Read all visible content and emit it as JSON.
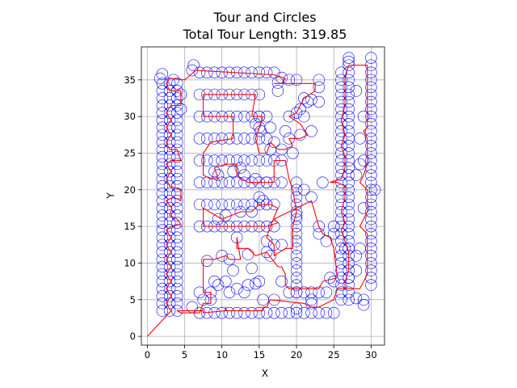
{
  "chart_data": {
    "type": "scatter",
    "title_line1": "Tour and Circles",
    "title_line2": "Total Tour Length: 319.85",
    "xlabel": "X",
    "ylabel": "Y",
    "xlim": [
      -0.8,
      31.8
    ],
    "ylim": [
      -1.2,
      39.5
    ],
    "xticks": [
      0,
      5,
      10,
      15,
      20,
      25,
      30
    ],
    "yticks": [
      0,
      5,
      10,
      15,
      20,
      25,
      30,
      35
    ],
    "grid": true,
    "colors": {
      "circles": "#0000ff",
      "tour": "#ff0000",
      "grid": "#b0b0b0"
    },
    "circle_radius": 0.75,
    "circle_groups": [
      {
        "x": 2.0,
        "y_from": 3.5,
        "y_to": 35.0,
        "step": 1.0
      },
      {
        "x": 3.0,
        "y_from": 3.5,
        "y_to": 35.0,
        "step": 1.0
      },
      {
        "x": 4.0,
        "y_from": 3.5,
        "y_to": 35.0,
        "step": 1.0
      },
      {
        "x": 26.0,
        "y_from": 5.0,
        "y_to": 36.0,
        "step": 1.0
      },
      {
        "x": 27.0,
        "y_from": 5.0,
        "y_to": 37.0,
        "step": 1.0
      },
      {
        "x": 30.0,
        "y_from": 7.0,
        "y_to": 37.0,
        "step": 1.0
      },
      {
        "y": 36.0,
        "x_from": 7.0,
        "x_to": 17.0,
        "step": 1.0
      },
      {
        "y": 33.0,
        "x_from": 7.0,
        "x_to": 15.0,
        "step": 1.0
      },
      {
        "y": 30.0,
        "x_from": 7.0,
        "x_to": 15.0,
        "step": 1.0
      },
      {
        "y": 27.0,
        "x_from": 7.0,
        "x_to": 15.0,
        "step": 1.0
      },
      {
        "y": 24.0,
        "x_from": 7.0,
        "x_to": 18.0,
        "step": 1.0
      },
      {
        "y": 21.0,
        "x_from": 7.0,
        "x_to": 18.0,
        "step": 1.0
      },
      {
        "y": 18.0,
        "x_from": 7.0,
        "x_to": 17.0,
        "step": 1.0
      },
      {
        "y": 15.0,
        "x_from": 7.0,
        "x_to": 17.0,
        "step": 1.0
      },
      {
        "y": 3.2,
        "x_from": 7.0,
        "x_to": 25.0,
        "step": 1.0
      },
      {
        "y": 6.0,
        "x_from": 19.0,
        "x_to": 24.0,
        "step": 1.0
      },
      {
        "x": 20.0,
        "y_from": 6.0,
        "y_to": 21.0,
        "step": 1.0
      }
    ],
    "circle_extra": [
      [
        1.7,
        35.2
      ],
      [
        2.0,
        35.8
      ],
      [
        3.5,
        35.0
      ],
      [
        4.5,
        33.0
      ],
      [
        4.5,
        31.0
      ],
      [
        6.2,
        37.0
      ],
      [
        6.0,
        36.3
      ],
      [
        18.0,
        35.3
      ],
      [
        19.0,
        35.0
      ],
      [
        20.0,
        35.0
      ],
      [
        23.0,
        35.0
      ],
      [
        23.0,
        34.0
      ],
      [
        17.5,
        34.6
      ],
      [
        17.5,
        33.5
      ],
      [
        21.0,
        32.5
      ],
      [
        21.5,
        32.0
      ],
      [
        22.0,
        32.3
      ],
      [
        20.5,
        31.0
      ],
      [
        20.0,
        30.5
      ],
      [
        23.0,
        32.0
      ],
      [
        19.0,
        30.0
      ],
      [
        21.0,
        30.0
      ],
      [
        15.0,
        30.0
      ],
      [
        16.0,
        30.0
      ],
      [
        14.5,
        29.0
      ],
      [
        15.0,
        28.5
      ],
      [
        15.2,
        28.0
      ],
      [
        16.5,
        28.5
      ],
      [
        18.5,
        28.0
      ],
      [
        20.5,
        27.5
      ],
      [
        22.0,
        28.0
      ],
      [
        19.0,
        27.0
      ],
      [
        17.0,
        26.5
      ],
      [
        16.5,
        25.5
      ],
      [
        18.0,
        25.5
      ],
      [
        19.5,
        25.0
      ],
      [
        16.0,
        27.0
      ],
      [
        13.0,
        22.0
      ],
      [
        11.5,
        22.5
      ],
      [
        12.5,
        23.0
      ],
      [
        14.5,
        21.5
      ],
      [
        16.0,
        21.0
      ],
      [
        9.5,
        22.0
      ],
      [
        9.0,
        22.5
      ],
      [
        21.0,
        20.0
      ],
      [
        22.0,
        19.0
      ],
      [
        23.5,
        21.0
      ],
      [
        15.0,
        19.0
      ],
      [
        15.5,
        18.5
      ],
      [
        16.0,
        18.0
      ],
      [
        9.5,
        16.0
      ],
      [
        10.5,
        16.5
      ],
      [
        12.5,
        17.0
      ],
      [
        14.0,
        17.0
      ],
      [
        12.0,
        13.5
      ],
      [
        16.0,
        13.0
      ],
      [
        16.5,
        11.0
      ],
      [
        17.0,
        12.5
      ],
      [
        18.0,
        12.5
      ],
      [
        16.0,
        11.5
      ],
      [
        20.0,
        16.5
      ],
      [
        23.0,
        15.0
      ],
      [
        23.0,
        14.0
      ],
      [
        24.0,
        13.0
      ],
      [
        25.0,
        14.0
      ],
      [
        25.0,
        15.0
      ],
      [
        10.0,
        11.0
      ],
      [
        11.0,
        10.5
      ],
      [
        13.5,
        11.2
      ],
      [
        8.0,
        10.3
      ],
      [
        14.0,
        9.3
      ],
      [
        11.5,
        9.0
      ],
      [
        9.0,
        7.5
      ],
      [
        9.5,
        7.0
      ],
      [
        10.5,
        7.5
      ],
      [
        11.0,
        6.0
      ],
      [
        12.0,
        6.5
      ],
      [
        13.0,
        6.0
      ],
      [
        13.5,
        7.0
      ],
      [
        14.5,
        7.2
      ],
      [
        15.0,
        7.5
      ],
      [
        8.5,
        6.0
      ],
      [
        8.5,
        5.0
      ],
      [
        7.5,
        5.0
      ],
      [
        7.0,
        6.0
      ],
      [
        6.0,
        4.0
      ],
      [
        15.5,
        5.0
      ],
      [
        17.0,
        5.0
      ],
      [
        18.0,
        7.5
      ],
      [
        20.0,
        3.8
      ],
      [
        22.0,
        5.0
      ],
      [
        22.0,
        4.5
      ],
      [
        24.5,
        8.0
      ],
      [
        25.0,
        7.5
      ],
      [
        27.0,
        8.0
      ],
      [
        28.0,
        9.0
      ],
      [
        28.0,
        11.0
      ],
      [
        26.5,
        12.0
      ],
      [
        28.5,
        12.0
      ],
      [
        28.0,
        5.2
      ],
      [
        29.0,
        5.0
      ],
      [
        29.0,
        4.3
      ],
      [
        28.0,
        33.5
      ],
      [
        27.0,
        37.5
      ],
      [
        27.0,
        38.0
      ],
      [
        30.0,
        38.0
      ],
      [
        29.0,
        30.0
      ],
      [
        28.5,
        27.0
      ],
      [
        28.5,
        23.5
      ],
      [
        28.0,
        22.0
      ],
      [
        29.0,
        17.5
      ],
      [
        29.0,
        24.0
      ],
      [
        30.5,
        20.0
      ]
    ],
    "tour": [
      [
        0,
        0
      ],
      [
        3.2,
        3.5
      ],
      [
        2.5,
        4.5
      ],
      [
        3.2,
        5.5
      ],
      [
        2.5,
        6.5
      ],
      [
        3.2,
        7.5
      ],
      [
        2.5,
        8.5
      ],
      [
        3.2,
        9.5
      ],
      [
        2.5,
        10.5
      ],
      [
        3.2,
        11.5
      ],
      [
        2.5,
        12.5
      ],
      [
        3.2,
        13.5
      ],
      [
        2.5,
        14.5
      ],
      [
        3.2,
        15.0
      ],
      [
        4.5,
        15.3
      ],
      [
        4.0,
        16.0
      ],
      [
        3.0,
        16.5
      ],
      [
        3.3,
        17.5
      ],
      [
        2.5,
        18.5
      ],
      [
        3.5,
        19.0
      ],
      [
        4.5,
        18.5
      ],
      [
        4.5,
        20.0
      ],
      [
        3.0,
        20.5
      ],
      [
        2.5,
        21.5
      ],
      [
        3.2,
        22.5
      ],
      [
        2.5,
        23.5
      ],
      [
        3.2,
        24.0
      ],
      [
        4.5,
        24.0
      ],
      [
        4.0,
        25.5
      ],
      [
        3.0,
        25.5
      ],
      [
        2.5,
        26.5
      ],
      [
        3.2,
        27.5
      ],
      [
        2.5,
        28.5
      ],
      [
        3.2,
        29.5
      ],
      [
        2.5,
        30.5
      ],
      [
        3.2,
        31.5
      ],
      [
        4.5,
        31.5
      ],
      [
        4.5,
        33.5
      ],
      [
        3.0,
        33.5
      ],
      [
        2.5,
        34.5
      ],
      [
        3.0,
        35.2
      ],
      [
        5.0,
        35.0
      ],
      [
        6.5,
        36.3
      ],
      [
        17.0,
        35.7
      ],
      [
        18.5,
        35.2
      ],
      [
        18.0,
        34.5
      ],
      [
        17.0,
        34.5
      ],
      [
        22.5,
        34.5
      ],
      [
        22.5,
        33.5
      ],
      [
        21.0,
        32.5
      ],
      [
        20.0,
        30.5
      ],
      [
        19.0,
        30.0
      ],
      [
        20.5,
        29.0
      ],
      [
        21.5,
        27.5
      ],
      [
        20.5,
        27.0
      ],
      [
        19.0,
        27.0
      ],
      [
        19.5,
        26.0
      ],
      [
        18.5,
        25.5
      ],
      [
        17.5,
        25.5
      ],
      [
        16.5,
        26.5
      ],
      [
        16.0,
        25.0
      ],
      [
        15.0,
        25.0
      ],
      [
        14.5,
        27.0
      ],
      [
        15.5,
        30.0
      ],
      [
        14.0,
        30.0
      ],
      [
        14.5,
        33.0
      ],
      [
        7.5,
        33.0
      ],
      [
        7.5,
        30.0
      ],
      [
        11.5,
        30.0
      ],
      [
        11.5,
        27.0
      ],
      [
        8.5,
        26.5
      ],
      [
        7.5,
        25.0
      ],
      [
        7.5,
        22.0
      ],
      [
        8.5,
        21.5
      ],
      [
        9.5,
        21.5
      ],
      [
        9.0,
        23.0
      ],
      [
        10.5,
        23.5
      ],
      [
        12.0,
        23.5
      ],
      [
        12.0,
        22.0
      ],
      [
        13.5,
        21.0
      ],
      [
        15.0,
        21.0
      ],
      [
        17.0,
        21.0
      ],
      [
        17.0,
        24.0
      ],
      [
        18.5,
        24.0
      ],
      [
        19.0,
        21.5
      ],
      [
        19.5,
        20.0
      ],
      [
        20.0,
        17.0
      ],
      [
        19.5,
        15.0
      ],
      [
        19.5,
        12.0
      ],
      [
        18.5,
        12.0
      ],
      [
        17.0,
        11.0
      ],
      [
        17.0,
        12.5
      ],
      [
        16.0,
        13.5
      ],
      [
        16.5,
        15.0
      ],
      [
        17.5,
        17.5
      ],
      [
        16.5,
        18.0
      ],
      [
        15.0,
        18.0
      ],
      [
        14.0,
        17.0
      ],
      [
        12.5,
        17.0
      ],
      [
        10.0,
        16.0
      ],
      [
        7.5,
        17.5
      ],
      [
        7.5,
        15.5
      ],
      [
        7.5,
        15.0
      ],
      [
        16.0,
        15.0
      ],
      [
        17.5,
        15.5
      ],
      [
        17.0,
        16.0
      ],
      [
        18.0,
        16.5
      ],
      [
        22.0,
        18.5
      ],
      [
        23.0,
        15.0
      ],
      [
        23.5,
        14.0
      ],
      [
        24.5,
        13.5
      ],
      [
        25.0,
        12.0
      ],
      [
        25.5,
        8.0
      ],
      [
        23.5,
        7.5
      ],
      [
        23.0,
        6.5
      ],
      [
        20.0,
        6.5
      ],
      [
        19.0,
        6.5
      ],
      [
        18.5,
        7.0
      ],
      [
        18.5,
        8.5
      ],
      [
        18.0,
        9.5
      ],
      [
        17.5,
        9.5
      ],
      [
        16.0,
        11.5
      ],
      [
        14.5,
        11.0
      ],
      [
        13.5,
        12.0
      ],
      [
        12.0,
        12.0
      ],
      [
        12.0,
        13.5
      ],
      [
        12.5,
        10.5
      ],
      [
        11.0,
        10.5
      ],
      [
        10.5,
        11.0
      ],
      [
        9.0,
        10.5
      ],
      [
        7.5,
        10.5
      ],
      [
        7.5,
        6.0
      ],
      [
        8.5,
        6.0
      ],
      [
        8.5,
        4.5
      ],
      [
        7.5,
        4.5
      ],
      [
        7.0,
        3.2
      ],
      [
        4.5,
        3.2
      ],
      [
        4.0,
        3.5
      ],
      [
        7.5,
        3.5
      ],
      [
        7.5,
        3.2
      ],
      [
        10.5,
        3.5
      ],
      [
        10.5,
        4.0
      ],
      [
        10.5,
        3.5
      ],
      [
        15.5,
        3.5
      ],
      [
        15.5,
        4.0
      ],
      [
        16.0,
        4.0
      ],
      [
        16.5,
        5.0
      ],
      [
        21.0,
        4.5
      ],
      [
        22.0,
        4.0
      ],
      [
        23.0,
        4.0
      ],
      [
        24.0,
        4.5
      ],
      [
        25.0,
        5.0
      ],
      [
        25.5,
        6.5
      ],
      [
        26.5,
        6.5
      ],
      [
        26.5,
        7.5
      ],
      [
        27.0,
        9.0
      ],
      [
        27.0,
        11.5
      ],
      [
        26.5,
        13.0
      ],
      [
        26.0,
        14.5
      ],
      [
        26.5,
        15.5
      ],
      [
        26.0,
        17.0
      ],
      [
        26.5,
        19.0
      ],
      [
        26.5,
        20.5
      ],
      [
        25.5,
        21.0
      ],
      [
        24.5,
        21.0
      ],
      [
        26.0,
        21.5
      ],
      [
        26.5,
        23.0
      ],
      [
        26.5,
        24.5
      ],
      [
        26.0,
        26.0
      ],
      [
        26.5,
        27.5
      ],
      [
        26.0,
        29.5
      ],
      [
        26.5,
        31.5
      ],
      [
        26.5,
        33.5
      ],
      [
        26.5,
        35.5
      ],
      [
        27.0,
        37.0
      ],
      [
        29.5,
        37.0
      ],
      [
        29.5,
        35.0
      ],
      [
        29.5,
        33.0
      ],
      [
        29.5,
        31.5
      ],
      [
        29.5,
        30.0
      ],
      [
        29.5,
        28.5
      ],
      [
        29.0,
        28.0
      ],
      [
        29.5,
        27.0
      ],
      [
        29.5,
        25.5
      ],
      [
        29.5,
        23.5
      ],
      [
        29.0,
        22.0
      ],
      [
        28.5,
        21.0
      ],
      [
        29.5,
        20.0
      ],
      [
        29.5,
        18.5
      ],
      [
        29.5,
        17.0
      ],
      [
        29.0,
        16.0
      ],
      [
        28.5,
        15.0
      ],
      [
        29.5,
        14.0
      ],
      [
        29.5,
        12.0
      ],
      [
        29.5,
        10.0
      ],
      [
        29.5,
        8.5
      ],
      [
        29.0,
        7.5
      ],
      [
        28.5,
        6.5
      ],
      [
        26.0,
        6.5
      ]
    ]
  }
}
